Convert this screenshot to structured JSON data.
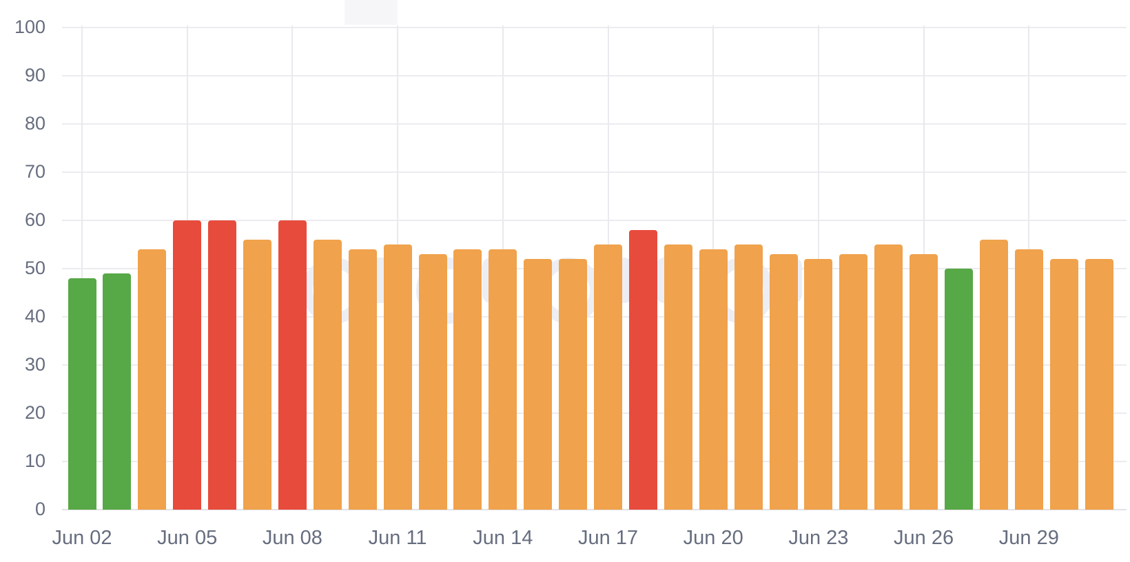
{
  "chart_data": {
    "type": "bar",
    "title": "",
    "xlabel": "",
    "ylabel": "",
    "ylim": [
      0,
      100
    ],
    "y_ticks": [
      0,
      10,
      20,
      30,
      40,
      50,
      60,
      70,
      80,
      90,
      100
    ],
    "x_tick_labels": [
      "Jun 02",
      "Jun 05",
      "Jun 08",
      "Jun 11",
      "Jun 14",
      "Jun 17",
      "Jun 20",
      "Jun 23",
      "Jun 26",
      "Jun 29"
    ],
    "x_tick_interval": 3,
    "grid": true,
    "legend_position": "none",
    "palette": {
      "green": "#57a846",
      "orange": "#f0a24c",
      "red": "#e74b3c"
    },
    "axis_text_color": "#666d7e",
    "gridline_color": "#ececf0",
    "bars": [
      {
        "value": 48,
        "color": "green"
      },
      {
        "value": 49,
        "color": "green"
      },
      {
        "value": 54,
        "color": "orange"
      },
      {
        "value": 60,
        "color": "red"
      },
      {
        "value": 60,
        "color": "red"
      },
      {
        "value": 56,
        "color": "orange"
      },
      {
        "value": 60,
        "color": "red"
      },
      {
        "value": 56,
        "color": "orange"
      },
      {
        "value": 54,
        "color": "orange"
      },
      {
        "value": 55,
        "color": "orange"
      },
      {
        "value": 53,
        "color": "orange"
      },
      {
        "value": 54,
        "color": "orange"
      },
      {
        "value": 54,
        "color": "orange"
      },
      {
        "value": 52,
        "color": "orange"
      },
      {
        "value": 52,
        "color": "orange"
      },
      {
        "value": 55,
        "color": "orange"
      },
      {
        "value": 58,
        "color": "red"
      },
      {
        "value": 55,
        "color": "orange"
      },
      {
        "value": 54,
        "color": "orange"
      },
      {
        "value": 55,
        "color": "orange"
      },
      {
        "value": 53,
        "color": "orange"
      },
      {
        "value": 52,
        "color": "orange"
      },
      {
        "value": 53,
        "color": "orange"
      },
      {
        "value": 55,
        "color": "orange"
      },
      {
        "value": 53,
        "color": "orange"
      },
      {
        "value": 50,
        "color": "green"
      },
      {
        "value": 56,
        "color": "orange"
      },
      {
        "value": 54,
        "color": "orange"
      },
      {
        "value": 52,
        "color": "orange"
      },
      {
        "value": 52,
        "color": "orange"
      }
    ]
  }
}
